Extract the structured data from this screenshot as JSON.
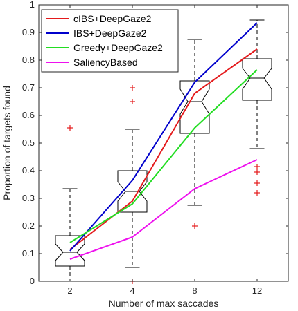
{
  "chart_data": {
    "type": "boxplot_with_lines",
    "xlabel": "Number of max saccades",
    "ylabel": "Proportion of targets found",
    "categories": [
      "2",
      "4",
      "8",
      "12"
    ],
    "ylim": [
      0,
      1
    ],
    "yticks": [
      "0",
      "0.1",
      "0.2",
      "0.3",
      "0.4",
      "0.5",
      "0.6",
      "0.7",
      "0.8",
      "0.9",
      "1"
    ],
    "legend_position": "top-left",
    "boxes": [
      {
        "category": "2",
        "q1": 0.055,
        "median": 0.105,
        "q3": 0.165,
        "notch_low": 0.075,
        "notch_high": 0.135,
        "whisker_low": 0.0,
        "whisker_high": 0.335,
        "outliers": [
          0.555
        ]
      },
      {
        "category": "4",
        "q1": 0.25,
        "median": 0.325,
        "q3": 0.4,
        "notch_low": 0.29,
        "notch_high": 0.36,
        "whisker_low": 0.05,
        "whisker_high": 0.55,
        "outliers": [
          0.0,
          0.65,
          0.7
        ]
      },
      {
        "category": "8",
        "q1": 0.535,
        "median": 0.65,
        "q3": 0.725,
        "notch_low": 0.605,
        "notch_high": 0.695,
        "whisker_low": 0.275,
        "whisker_high": 0.875,
        "outliers": [
          0.2
        ]
      },
      {
        "category": "12",
        "q1": 0.655,
        "median": 0.735,
        "q3": 0.805,
        "notch_low": 0.695,
        "notch_high": 0.77,
        "whisker_low": 0.48,
        "whisker_high": 0.945,
        "outliers": [
          0.32,
          0.355,
          0.395,
          0.415
        ]
      }
    ],
    "series": [
      {
        "name": "cIBS+DeepGaze2",
        "color": "#e41a1c",
        "values": [
          0.115,
          0.29,
          0.68,
          0.84
        ]
      },
      {
        "name": "IBS+DeepGaze2",
        "color": "#0000cc",
        "values": [
          0.11,
          0.365,
          0.72,
          0.935
        ]
      },
      {
        "name": "Greedy+DeepGaze2",
        "color": "#22dd22",
        "values": [
          0.14,
          0.28,
          0.555,
          0.765
        ]
      },
      {
        "name": "SaliencyBased",
        "color": "#ee11ee",
        "values": [
          0.08,
          0.16,
          0.335,
          0.44
        ]
      }
    ]
  }
}
